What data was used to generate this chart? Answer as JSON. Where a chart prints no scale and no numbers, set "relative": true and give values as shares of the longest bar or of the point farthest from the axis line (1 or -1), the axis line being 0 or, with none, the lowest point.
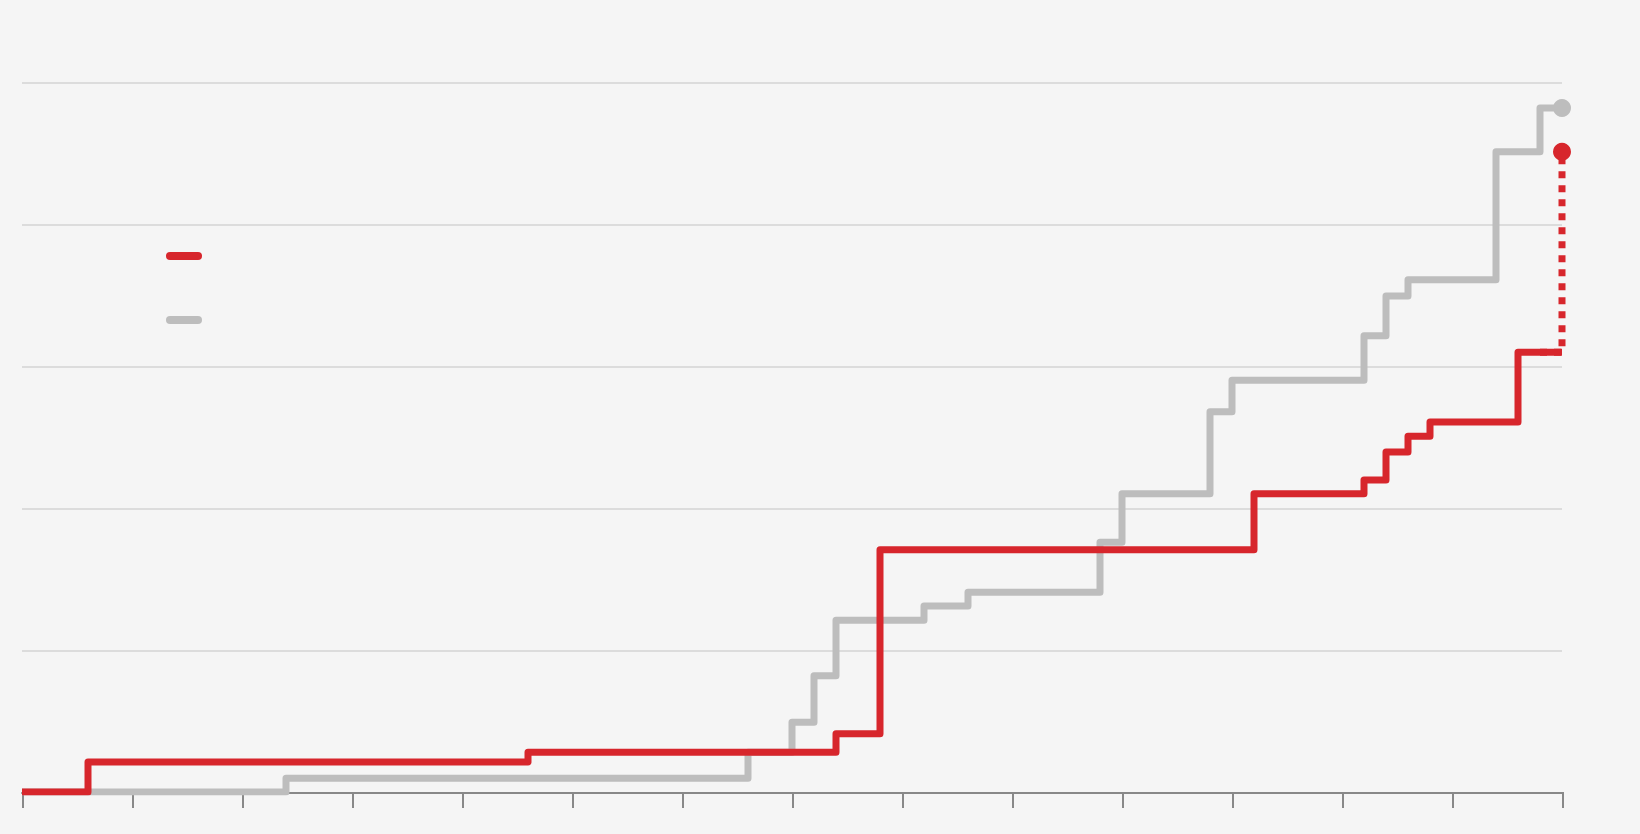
{
  "chart_data": {
    "type": "step",
    "relative": true,
    "grid": "y",
    "categories": [
      null,
      null,
      null,
      null,
      null,
      null,
      null,
      null,
      null,
      null,
      null,
      null,
      null,
      null,
      null,
      null,
      null,
      null,
      null,
      null,
      null,
      null,
      null,
      null,
      null,
      null,
      null,
      null,
      null,
      null,
      null,
      null,
      null,
      null,
      null,
      null,
      null,
      null,
      null,
      null,
      null,
      null,
      null,
      null,
      null,
      null,
      null,
      null,
      null,
      null,
      null,
      null,
      null,
      null,
      null,
      null,
      null,
      null,
      null,
      null,
      null,
      null,
      null,
      null,
      null,
      null,
      null,
      null,
      null,
      null,
      null
    ],
    "series": [
      {
        "color": "#bdbdbd",
        "values": [
          0,
          0,
          0,
          0,
          0,
          0,
          0,
          0,
          0,
          0,
          0,
          0,
          0.02,
          0.02,
          0.02,
          0.02,
          0.02,
          0.02,
          0.02,
          0.02,
          0.02,
          0.02,
          0.02,
          0.02,
          0.02,
          0.02,
          0.02,
          0.02,
          0.02,
          0.02,
          0.02,
          0.02,
          0.02,
          0.058,
          0.058,
          0.102,
          0.17,
          0.251,
          0.251,
          0.251,
          0.251,
          0.272,
          0.272,
          0.292,
          0.292,
          0.292,
          0.292,
          0.292,
          0.292,
          0.365,
          0.436,
          0.436,
          0.436,
          0.436,
          0.556,
          0.602,
          0.602,
          0.602,
          0.602,
          0.602,
          0.602,
          0.667,
          0.725,
          0.749,
          0.749,
          0.749,
          0.749,
          0.936,
          0.936,
          1,
          1
        ]
      },
      {
        "color": "#d7262c",
        "values": [
          0,
          0,
          0,
          0.044,
          0.044,
          0.044,
          0.044,
          0.044,
          0.044,
          0.044,
          0.044,
          0.044,
          0.044,
          0.044,
          0.044,
          0.044,
          0.044,
          0.044,
          0.044,
          0.044,
          0.044,
          0.044,
          0.044,
          0.058,
          0.058,
          0.058,
          0.058,
          0.058,
          0.058,
          0.058,
          0.058,
          0.058,
          0.058,
          0.058,
          0.058,
          0.058,
          0.058,
          0.085,
          0.085,
          0.354,
          0.354,
          0.354,
          0.354,
          0.354,
          0.354,
          0.354,
          0.354,
          0.354,
          0.354,
          0.354,
          0.354,
          0.354,
          0.354,
          0.354,
          0.354,
          0.354,
          0.436,
          0.436,
          0.436,
          0.436,
          0.436,
          0.456,
          0.497,
          0.52,
          0.541,
          0.541,
          0.541,
          0.541,
          0.643,
          0.643,
          0.643
        ]
      },
      {
        "color": "#d7262c",
        "marker": "circle",
        "line_style": "dotted",
        "values": [
          null,
          null,
          null,
          null,
          null,
          null,
          null,
          null,
          null,
          null,
          null,
          null,
          null,
          null,
          null,
          null,
          null,
          null,
          null,
          null,
          null,
          null,
          null,
          null,
          null,
          null,
          null,
          null,
          null,
          null,
          null,
          null,
          null,
          null,
          null,
          null,
          null,
          null,
          null,
          null,
          null,
          null,
          null,
          null,
          null,
          null,
          null,
          null,
          null,
          null,
          null,
          null,
          null,
          null,
          null,
          null,
          null,
          null,
          null,
          null,
          null,
          null,
          null,
          null,
          null,
          null,
          null,
          null,
          null,
          0.643,
          0.936
        ]
      },
      {
        "color": "#bdbdbd",
        "marker": "circle",
        "values": [
          null,
          null,
          null,
          null,
          null,
          null,
          null,
          null,
          null,
          null,
          null,
          null,
          null,
          null,
          null,
          null,
          null,
          null,
          null,
          null,
          null,
          null,
          null,
          null,
          null,
          null,
          null,
          null,
          null,
          null,
          null,
          null,
          null,
          null,
          null,
          null,
          null,
          null,
          null,
          null,
          null,
          null,
          null,
          null,
          null,
          null,
          null,
          null,
          null,
          null,
          null,
          null,
          null,
          null,
          null,
          null,
          null,
          null,
          null,
          null,
          null,
          null,
          null,
          null,
          null,
          null,
          null,
          null,
          null,
          null,
          1
        ]
      }
    ]
  }
}
